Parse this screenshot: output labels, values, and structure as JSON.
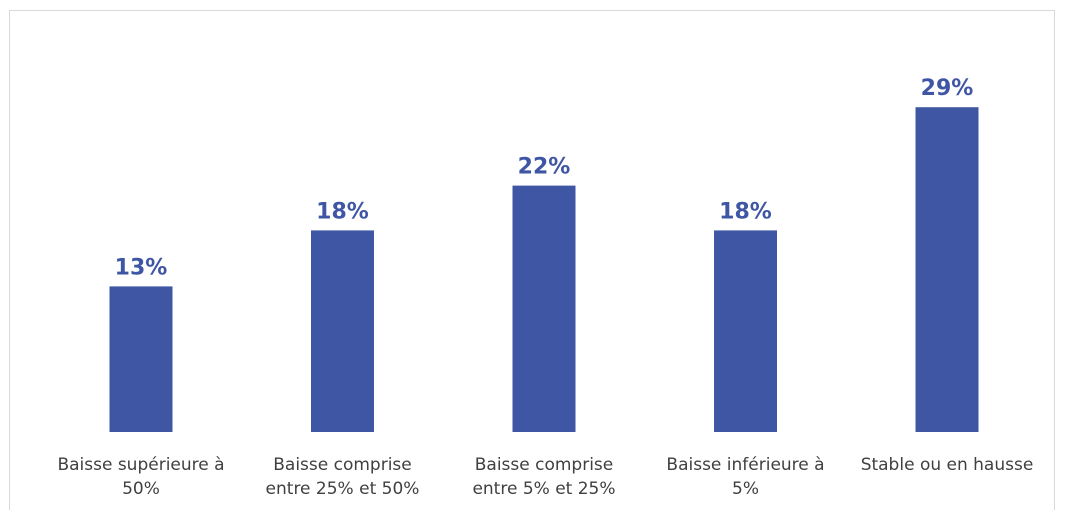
{
  "chart_data": {
    "type": "bar",
    "categories": [
      [
        "Baisse supérieure à",
        "50%"
      ],
      [
        "Baisse comprise",
        "entre 25% et 50%"
      ],
      [
        "Baisse comprise",
        "entre 5% et 25%"
      ],
      [
        "Baisse inférieure à",
        "5%"
      ],
      [
        "Stable ou en hausse"
      ]
    ],
    "values": [
      13,
      18,
      22,
      18,
      29
    ],
    "value_labels": [
      "13%",
      "18%",
      "22%",
      "18%",
      "29%"
    ],
    "unit": "%",
    "title": "",
    "xlabel": "",
    "ylabel": "",
    "ylim": [
      0,
      30
    ],
    "grid": false,
    "legend": "none",
    "bar_color": "#3f56a5",
    "label_color": "#3f56a5"
  }
}
